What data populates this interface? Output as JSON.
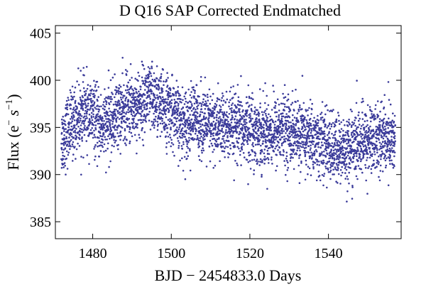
{
  "chart_data": {
    "type": "scatter",
    "title": "D Q16 SAP Corrected Endmatched",
    "xlabel": "BJD − 2454833.0 Days",
    "ylabel_main": "Flux (e",
    "ylabel_sup1": "−",
    "ylabel_mid": " s",
    "ylabel_sup2": "−1",
    "ylabel_end": ")",
    "xlim": [
      1470.5,
      1558.5
    ],
    "ylim": [
      383.2,
      405.8
    ],
    "xticks": [
      1480,
      1500,
      1520,
      1540
    ],
    "xtick_labels": [
      "1480",
      "1500",
      "1520",
      "1540"
    ],
    "yticks": [
      385,
      390,
      395,
      400,
      405
    ],
    "ytick_labels": [
      "385",
      "390",
      "395",
      "400",
      "405"
    ],
    "point_color": "#3b3b9a",
    "series": [
      {
        "name": "flux",
        "x": [
          1472,
          1474,
          1476,
          1478,
          1480,
          1482,
          1484,
          1486,
          1488,
          1490,
          1492,
          1494,
          1496,
          1498,
          1500,
          1502,
          1504,
          1506,
          1508,
          1510,
          1512,
          1514,
          1516,
          1518,
          1520,
          1522,
          1524,
          1526,
          1528,
          1530,
          1532,
          1534,
          1536,
          1538,
          1540,
          1542,
          1544,
          1546,
          1548,
          1550,
          1552,
          1554,
          1556,
          1557
        ],
        "y": [
          393.5,
          395.0,
          396.0,
          396.5,
          396.2,
          395.0,
          395.5,
          396.3,
          396.8,
          397.2,
          397.5,
          398.2,
          397.8,
          397.0,
          396.8,
          395.5,
          395.5,
          396.0,
          395.6,
          395.0,
          395.2,
          395.0,
          394.8,
          394.8,
          395.0,
          394.5,
          394.6,
          394.5,
          394.8,
          394.7,
          394.2,
          394.0,
          393.8,
          393.3,
          393.0,
          392.5,
          392.6,
          392.9,
          393.3,
          393.6,
          394.0,
          394.0,
          393.8,
          393.5
        ],
        "approx_point_count": 3900,
        "scatter_sigma": 1.8
      }
    ]
  }
}
